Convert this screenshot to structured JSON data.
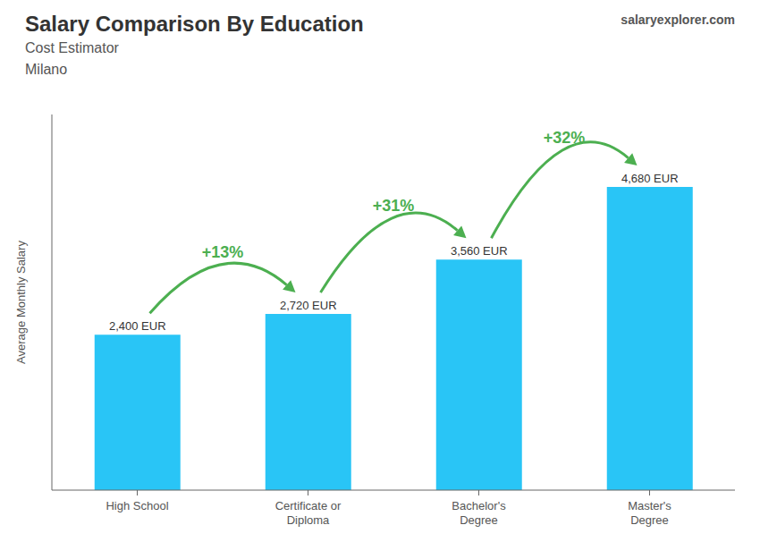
{
  "chart_data": {
    "type": "bar",
    "title": "Salary Comparison By Education",
    "subtitle": "Cost Estimator",
    "y_label": "Average Monthly Salary",
    "categories": [
      "High School",
      "Certificate or\nDiploma",
      "Bachelor's\nDegree",
      "Master's\nDegree"
    ],
    "values": [
      2400,
      2720,
      3560,
      4680
    ],
    "value_labels": [
      "2,400 EUR",
      "2,720 EUR",
      "3,560 EUR",
      "4,680 EUR"
    ],
    "data_labels": true,
    "color": "#29c5f6",
    "ylim": [
      0,
      5800
    ],
    "tick_labels": "x",
    "grid": false,
    "annotations": [
      {
        "text": "Milano"
      },
      {
        "text": "salaryexplorer.com"
      },
      {
        "text": "+13%",
        "from": "High School",
        "to": "Certificate or\nDiploma",
        "color": "#4caf50"
      },
      {
        "text": "+31%",
        "from": "Certificate or\nDiploma",
        "to": "Bachelor's\nDegree",
        "color": "#4caf50"
      },
      {
        "text": "+32%",
        "from": "Bachelor's\nDegree",
        "to": "Master's\nDegree",
        "color": "#4caf50"
      }
    ]
  }
}
